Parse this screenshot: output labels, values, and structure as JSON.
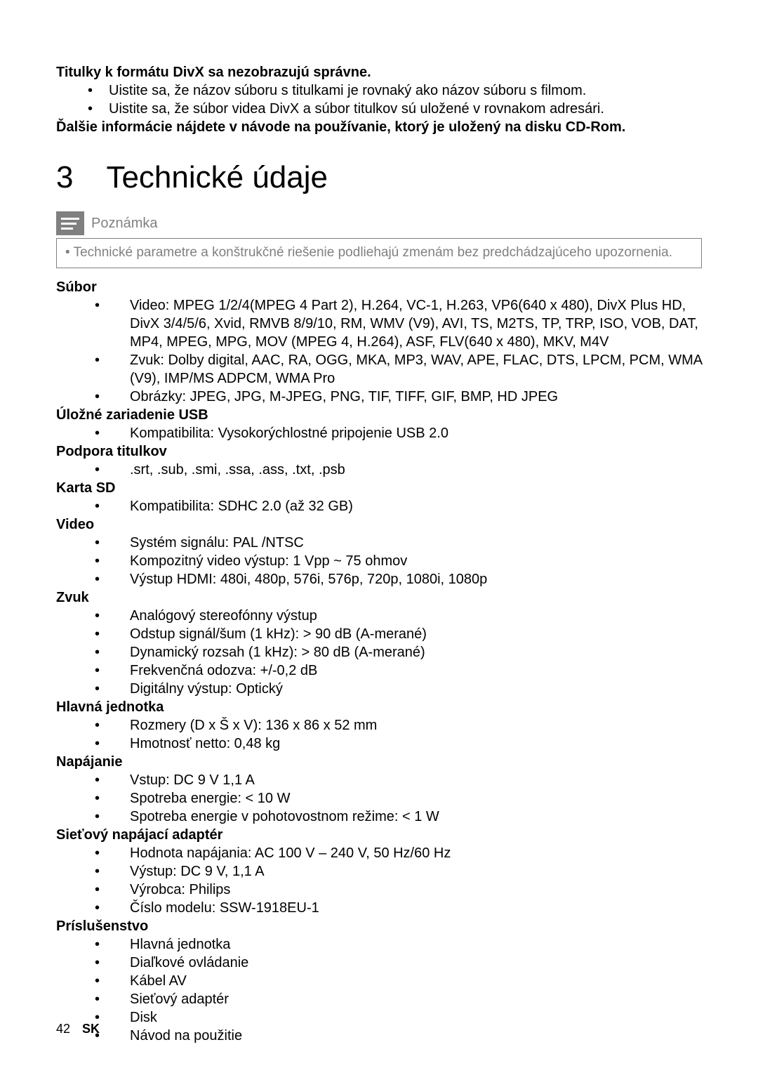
{
  "intro": {
    "heading": "Titulky k formátu DivX sa nezobrazujú správne.",
    "bullets": [
      "Uistite sa, že názov súboru s titulkami je rovnaký ako názov súboru s filmom.",
      "Uistite sa, že súbor videa DivX a súbor titulkov sú uložené v rovnakom adresári."
    ],
    "closing": "Ďalšie informácie nájdete v návode na používanie, ktorý je uložený na disku CD-Rom."
  },
  "section": {
    "number": "3",
    "title": "Technické údaje"
  },
  "note": {
    "label": "Poznámka",
    "text": "Technické parametre a konštrukčné riešenie podliehajú zmenám bez predchádzajúceho upozornenia."
  },
  "specs": [
    {
      "heading": "Súbor",
      "items": [
        "Video: MPEG 1/2/4(MPEG 4 Part 2), H.264, VC-1, H.263, VP6(640 x 480), DivX Plus HD, DivX 3/4/5/6, Xvid, RMVB 8/9/10, RM, WMV (V9), AVI, TS, M2TS, TP, TRP, ISO, VOB, DAT, MP4, MPEG, MPG, MOV (MPEG 4, H.264), ASF, FLV(640 x 480), MKV, M4V",
        "Zvuk: Dolby digital, AAC, RA, OGG, MKA, MP3, WAV, APE, FLAC, DTS, LPCM, PCM, WMA (V9), IMP/MS ADPCM, WMA Pro",
        "Obrázky: JPEG, JPG, M-JPEG, PNG, TIF, TIFF, GIF, BMP, HD JPEG"
      ]
    },
    {
      "heading": "Úložné zariadenie USB",
      "items": [
        "Kompatibilita: Vysokorýchlostné pripojenie USB 2.0"
      ]
    },
    {
      "heading": "Podpora titulkov",
      "items": [
        ".srt, .sub, .smi, .ssa, .ass, .txt, .psb"
      ]
    },
    {
      "heading": "Karta SD",
      "items": [
        "Kompatibilita: SDHC 2.0 (až 32 GB)"
      ]
    },
    {
      "heading": "Video",
      "items": [
        "Systém signálu: PAL /NTSC",
        "Kompozitný video výstup: 1 Vpp ~ 75 ohmov",
        "Výstup HDMI: 480i, 480p, 576i, 576p, 720p, 1080i, 1080p"
      ]
    },
    {
      "heading": "Zvuk",
      "items": [
        "Analógový stereofónny výstup",
        "Odstup signál/šum (1 kHz): > 90 dB (A-merané)",
        "Dynamický rozsah (1 kHz): > 80 dB (A-merané)",
        "Frekvenčná odozva: +/-0,2 dB",
        "Digitálny výstup: Optický"
      ]
    },
    {
      "heading": "Hlavná jednotka",
      "items": [
        "Rozmery (D x Š x V): 136 x 86 x 52 mm",
        "Hmotnosť netto: 0,48 kg"
      ]
    },
    {
      "heading": "Napájanie",
      "items": [
        "Vstup: DC 9 V 1,1 A",
        "Spotreba energie: < 10 W",
        "Spotreba energie v pohotovostnom režime: < 1 W"
      ]
    },
    {
      "heading": "Sieťový napájací adaptér",
      "items": [
        "Hodnota napájania: AC 100 V – 240 V, 50 Hz/60 Hz",
        "Výstup: DC 9 V, 1,1 A",
        "Výrobca: Philips",
        "Číslo modelu: SSW-1918EU-1"
      ]
    },
    {
      "heading": "Príslušenstvo",
      "items": [
        "Hlavná jednotka",
        "Diaľkové ovládanie",
        "Kábel AV",
        "Sieťový adaptér",
        "Disk",
        "Návod na použitie"
      ]
    }
  ],
  "footer": {
    "page": "42",
    "lang": "SK"
  }
}
